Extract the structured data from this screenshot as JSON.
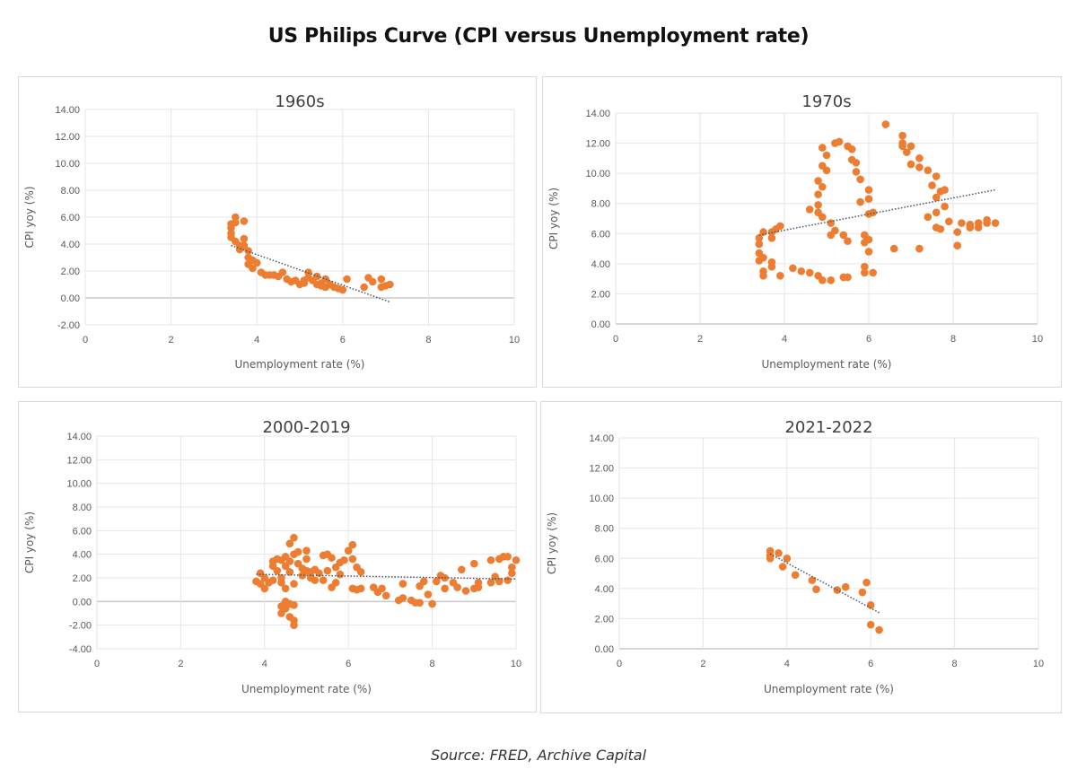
{
  "title": "US Philips Curve (CPI versus Unemployment rate)",
  "source": "Source: FRED, Archive Capital",
  "colors": {
    "points": "#ED7D31",
    "trendline": "#44546A",
    "grid": "#e6e6e6",
    "zero_line": "#c8c8c8"
  },
  "chart_data": [
    {
      "type": "scatter",
      "title": "1960s",
      "xlabel": "Unemployment rate (%)",
      "ylabel": "CPI yoy (%)",
      "xlim": [
        0,
        10
      ],
      "xticks": [
        "0",
        "2",
        "4",
        "6",
        "8",
        "10"
      ],
      "ylim": [
        -2,
        14
      ],
      "yticks": [
        "-2.00",
        "0.00",
        "2.00",
        "4.00",
        "6.00",
        "8.00",
        "10.00",
        "12.00",
        "14.00"
      ],
      "grid": true,
      "trendline": [
        [
          3.4,
          3.9
        ],
        [
          7.1,
          -0.3
        ]
      ],
      "points": [
        [
          3.4,
          5.5
        ],
        [
          3.4,
          5.2
        ],
        [
          3.5,
          6.0
        ],
        [
          3.5,
          5.6
        ],
        [
          3.4,
          4.8
        ],
        [
          3.4,
          4.5
        ],
        [
          3.5,
          4.2
        ],
        [
          3.6,
          3.9
        ],
        [
          3.6,
          3.6
        ],
        [
          3.7,
          5.7
        ],
        [
          3.7,
          4.4
        ],
        [
          3.7,
          3.9
        ],
        [
          3.8,
          3.5
        ],
        [
          3.8,
          3.0
        ],
        [
          3.8,
          2.5
        ],
        [
          3.9,
          2.8
        ],
        [
          3.9,
          2.2
        ],
        [
          4.0,
          2.6
        ],
        [
          4.1,
          1.9
        ],
        [
          4.2,
          1.7
        ],
        [
          4.3,
          1.7
        ],
        [
          4.4,
          1.7
        ],
        [
          4.5,
          1.6
        ],
        [
          4.6,
          1.9
        ],
        [
          4.7,
          1.4
        ],
        [
          4.8,
          1.2
        ],
        [
          4.9,
          1.3
        ],
        [
          5.0,
          1.0
        ],
        [
          5.1,
          1.3
        ],
        [
          5.1,
          1.1
        ],
        [
          5.2,
          1.9
        ],
        [
          5.2,
          1.5
        ],
        [
          5.3,
          1.3
        ],
        [
          5.4,
          1.6
        ],
        [
          5.4,
          1.0
        ],
        [
          5.5,
          1.1
        ],
        [
          5.5,
          0.9
        ],
        [
          5.6,
          1.4
        ],
        [
          5.6,
          0.8
        ],
        [
          5.7,
          1.0
        ],
        [
          5.8,
          0.8
        ],
        [
          5.9,
          0.7
        ],
        [
          6.0,
          0.6
        ],
        [
          6.1,
          1.4
        ],
        [
          6.5,
          0.8
        ],
        [
          6.6,
          1.5
        ],
        [
          6.7,
          1.2
        ],
        [
          6.9,
          1.4
        ],
        [
          6.9,
          0.8
        ],
        [
          7.0,
          0.9
        ],
        [
          7.1,
          1.0
        ]
      ]
    },
    {
      "type": "scatter",
      "title": "1970s",
      "xlabel": "Unemployment rate (%)",
      "ylabel": "CPI yoy (%)",
      "xlim": [
        0,
        10
      ],
      "xticks": [
        "0",
        "2",
        "4",
        "6",
        "8",
        "10"
      ],
      "ylim": [
        0,
        14
      ],
      "yticks": [
        "0.00",
        "2.00",
        "4.00",
        "6.00",
        "8.00",
        "10.00",
        "12.00",
        "14.00"
      ],
      "grid": true,
      "trendline": [
        [
          3.4,
          5.9
        ],
        [
          9.0,
          8.9
        ]
      ],
      "points": [
        [
          6.4,
          13.25
        ],
        [
          6.8,
          12.5
        ],
        [
          6.8,
          12.0
        ],
        [
          6.8,
          11.8
        ],
        [
          7.0,
          11.8
        ],
        [
          6.9,
          11.4
        ],
        [
          7.0,
          10.6
        ],
        [
          7.2,
          11.0
        ],
        [
          7.2,
          10.4
        ],
        [
          7.4,
          10.2
        ],
        [
          7.6,
          9.8
        ],
        [
          7.5,
          9.2
        ],
        [
          7.6,
          8.4
        ],
        [
          7.7,
          8.8
        ],
        [
          7.8,
          8.9
        ],
        [
          7.8,
          7.8
        ],
        [
          7.4,
          7.1
        ],
        [
          7.6,
          7.4
        ],
        [
          7.9,
          6.8
        ],
        [
          7.6,
          6.4
        ],
        [
          7.7,
          6.3
        ],
        [
          8.1,
          6.1
        ],
        [
          8.1,
          5.2
        ],
        [
          8.2,
          6.7
        ],
        [
          8.4,
          6.6
        ],
        [
          8.4,
          6.4
        ],
        [
          8.6,
          6.7
        ],
        [
          8.6,
          6.4
        ],
        [
          8.8,
          6.9
        ],
        [
          8.8,
          6.7
        ],
        [
          9.0,
          6.7
        ],
        [
          7.2,
          5.0
        ],
        [
          6.6,
          5.0
        ],
        [
          4.9,
          11.7
        ],
        [
          5.0,
          11.2
        ],
        [
          4.9,
          10.5
        ],
        [
          5.0,
          10.2
        ],
        [
          4.8,
          9.5
        ],
        [
          4.9,
          9.1
        ],
        [
          4.8,
          8.6
        ],
        [
          4.6,
          7.6
        ],
        [
          4.8,
          7.9
        ],
        [
          4.8,
          7.4
        ],
        [
          4.9,
          7.1
        ],
        [
          5.1,
          6.7
        ],
        [
          5.1,
          5.9
        ],
        [
          5.2,
          6.2
        ],
        [
          5.4,
          5.9
        ],
        [
          5.5,
          5.5
        ],
        [
          5.2,
          12.0
        ],
        [
          5.3,
          12.1
        ],
        [
          5.5,
          11.8
        ],
        [
          5.6,
          11.6
        ],
        [
          5.6,
          10.9
        ],
        [
          5.7,
          10.7
        ],
        [
          5.7,
          10.1
        ],
        [
          5.8,
          9.6
        ],
        [
          5.8,
          8.1
        ],
        [
          6.0,
          8.9
        ],
        [
          6.0,
          8.3
        ],
        [
          6.0,
          7.3
        ],
        [
          6.1,
          7.4
        ],
        [
          5.9,
          5.9
        ],
        [
          6.0,
          5.6
        ],
        [
          5.9,
          5.4
        ],
        [
          6.0,
          4.8
        ],
        [
          5.9,
          3.8
        ],
        [
          5.9,
          3.4
        ],
        [
          6.1,
          3.4
        ],
        [
          5.5,
          3.1
        ],
        [
          5.4,
          3.1
        ],
        [
          5.1,
          2.9
        ],
        [
          4.9,
          2.9
        ],
        [
          4.8,
          3.2
        ],
        [
          4.6,
          3.4
        ],
        [
          4.4,
          3.5
        ],
        [
          4.2,
          3.7
        ],
        [
          3.9,
          3.2
        ],
        [
          3.5,
          3.2
        ],
        [
          3.5,
          3.5
        ],
        [
          3.7,
          3.8
        ],
        [
          3.7,
          4.1
        ],
        [
          3.4,
          4.2
        ],
        [
          3.5,
          4.4
        ],
        [
          3.4,
          4.7
        ],
        [
          3.4,
          5.3
        ],
        [
          3.4,
          5.7
        ],
        [
          3.5,
          6.1
        ],
        [
          3.7,
          5.7
        ],
        [
          3.7,
          6.1
        ],
        [
          3.8,
          6.3
        ],
        [
          3.9,
          6.5
        ]
      ]
    },
    {
      "type": "scatter",
      "title": "2000-2019",
      "xlabel": "Unemployment rate (%)",
      "ylabel": "CPI yoy (%)",
      "xlim": [
        0,
        10
      ],
      "xticks": [
        "0",
        "2",
        "4",
        "6",
        "8",
        "10"
      ],
      "ylim": [
        -4,
        14
      ],
      "yticks": [
        "-4.00",
        "-2.00",
        "0.00",
        "2.00",
        "4.00",
        "6.00",
        "8.00",
        "10.00",
        "12.00",
        "14.00"
      ],
      "grid": true,
      "trendline": [
        [
          3.8,
          2.3
        ],
        [
          10.0,
          1.9
        ]
      ],
      "points": [
        [
          3.8,
          1.7
        ],
        [
          3.9,
          2.4
        ],
        [
          3.9,
          1.5
        ],
        [
          4.0,
          1.1
        ],
        [
          4.0,
          2.0
        ],
        [
          4.1,
          1.6
        ],
        [
          4.2,
          1.8
        ],
        [
          4.2,
          3.0
        ],
        [
          4.2,
          3.4
        ],
        [
          4.3,
          3.6
        ],
        [
          4.3,
          2.6
        ],
        [
          4.4,
          3.5
        ],
        [
          4.4,
          2.0
        ],
        [
          4.4,
          1.6
        ],
        [
          4.5,
          3.8
        ],
        [
          4.5,
          3.0
        ],
        [
          4.5,
          1.1
        ],
        [
          4.6,
          4.9
        ],
        [
          4.6,
          3.4
        ],
        [
          4.6,
          2.5
        ],
        [
          4.7,
          5.4
        ],
        [
          4.7,
          4.0
        ],
        [
          4.7,
          1.5
        ],
        [
          4.8,
          4.2
        ],
        [
          4.8,
          3.2
        ],
        [
          4.9,
          2.8
        ],
        [
          4.9,
          2.2
        ],
        [
          5.0,
          4.3
        ],
        [
          5.0,
          3.6
        ],
        [
          5.0,
          2.6
        ],
        [
          5.1,
          2.5
        ],
        [
          5.1,
          2.0
        ],
        [
          5.2,
          2.7
        ],
        [
          5.2,
          1.8
        ],
        [
          5.3,
          2.4
        ],
        [
          5.4,
          1.8
        ],
        [
          5.4,
          3.9
        ],
        [
          5.5,
          2.6
        ],
        [
          5.5,
          4.0
        ],
        [
          5.6,
          1.2
        ],
        [
          5.6,
          3.7
        ],
        [
          5.7,
          2.9
        ],
        [
          5.7,
          1.6
        ],
        [
          5.8,
          3.3
        ],
        [
          5.8,
          2.3
        ],
        [
          5.9,
          3.5
        ],
        [
          6.0,
          4.3
        ],
        [
          6.1,
          4.8
        ],
        [
          6.1,
          3.6
        ],
        [
          6.1,
          1.1
        ],
        [
          6.2,
          2.9
        ],
        [
          6.2,
          1.0
        ],
        [
          6.3,
          2.5
        ],
        [
          6.3,
          1.1
        ],
        [
          6.6,
          1.2
        ],
        [
          6.7,
          0.8
        ],
        [
          6.8,
          1.1
        ],
        [
          6.9,
          0.5
        ],
        [
          7.2,
          0.1
        ],
        [
          7.3,
          1.5
        ],
        [
          7.3,
          0.3
        ],
        [
          7.5,
          0.1
        ],
        [
          7.6,
          -0.1
        ],
        [
          7.7,
          -0.1
        ],
        [
          7.7,
          1.3
        ],
        [
          7.8,
          1.7
        ],
        [
          7.9,
          0.6
        ],
        [
          8.0,
          -0.2
        ],
        [
          8.1,
          1.7
        ],
        [
          8.2,
          2.2
        ],
        [
          8.3,
          1.1
        ],
        [
          8.3,
          2.0
        ],
        [
          8.5,
          1.6
        ],
        [
          8.6,
          1.2
        ],
        [
          8.7,
          2.7
        ],
        [
          8.8,
          0.9
        ],
        [
          9.0,
          3.2
        ],
        [
          9.0,
          1.1
        ],
        [
          9.1,
          1.6
        ],
        [
          9.1,
          1.2
        ],
        [
          9.4,
          1.6
        ],
        [
          9.4,
          3.5
        ],
        [
          9.5,
          2.1
        ],
        [
          9.6,
          1.7
        ],
        [
          9.6,
          3.6
        ],
        [
          9.7,
          3.8
        ],
        [
          9.8,
          1.8
        ],
        [
          9.8,
          3.8
        ],
        [
          9.9,
          2.9
        ],
        [
          9.9,
          2.4
        ],
        [
          10.0,
          3.5
        ],
        [
          4.4,
          -1.0
        ],
        [
          4.4,
          -0.4
        ],
        [
          4.5,
          0.0
        ],
        [
          4.5,
          -0.6
        ],
        [
          4.6,
          -0.2
        ],
        [
          4.6,
          -1.3
        ],
        [
          4.7,
          -1.6
        ],
        [
          4.7,
          -2.0
        ],
        [
          4.7,
          -0.3
        ],
        [
          4.5,
          -0.1
        ]
      ]
    },
    {
      "type": "scatter",
      "title": "2021-2022",
      "xlabel": "Unemployment rate (%)",
      "ylabel": "CPI yoy (%)",
      "xlim": [
        0,
        10
      ],
      "xticks": [
        "0",
        "2",
        "4",
        "6",
        "8",
        "10"
      ],
      "ylim": [
        0,
        14
      ],
      "yticks": [
        "0.00",
        "2.00",
        "4.00",
        "6.00",
        "8.00",
        "10.00",
        "12.00",
        "14.00"
      ],
      "grid": true,
      "trendline": [
        [
          3.6,
          6.3
        ],
        [
          6.2,
          2.4
        ]
      ],
      "points": [
        [
          3.6,
          6.5
        ],
        [
          3.6,
          6.2
        ],
        [
          3.6,
          6.0
        ],
        [
          3.8,
          6.35
        ],
        [
          4.0,
          6.0
        ],
        [
          3.9,
          5.45
        ],
        [
          4.2,
          4.9
        ],
        [
          4.6,
          4.55
        ],
        [
          4.7,
          3.95
        ],
        [
          5.2,
          3.9
        ],
        [
          5.4,
          4.1
        ],
        [
          5.8,
          3.75
        ],
        [
          5.9,
          4.4
        ],
        [
          6.0,
          2.9
        ],
        [
          6.0,
          1.6
        ],
        [
          6.2,
          1.25
        ]
      ]
    }
  ]
}
